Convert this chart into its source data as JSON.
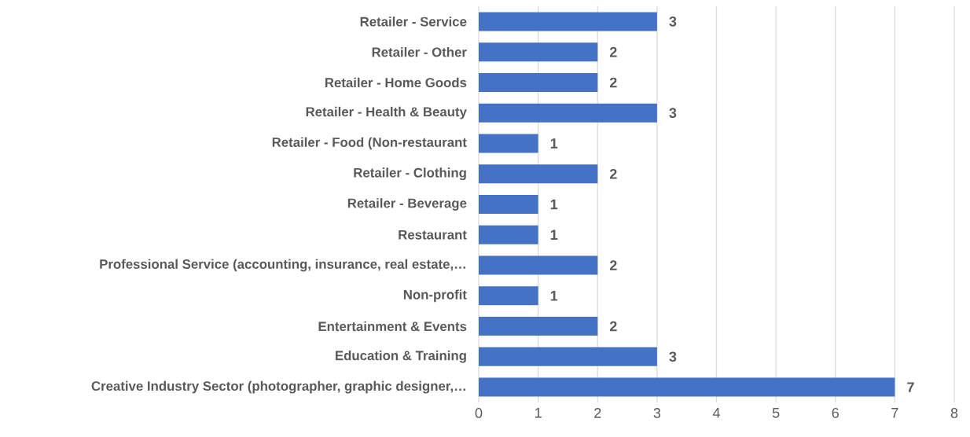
{
  "chart_data": {
    "type": "bar",
    "orientation": "horizontal",
    "categories": [
      "Retailer - Service",
      "Retailer - Other",
      "Retailer - Home Goods",
      "Retailer - Health & Beauty",
      "Retailer - Food (Non-restaurant",
      "Retailer - Clothing",
      "Retailer - Beverage",
      "Restaurant",
      "Professional Service (accounting, insurance, real estate,…",
      "Non-profit",
      "Entertainment & Events",
      "Education & Training",
      "Creative Industry Sector (photographer, graphic designer,…"
    ],
    "values": [
      3,
      2,
      2,
      3,
      1,
      2,
      1,
      1,
      2,
      1,
      2,
      3,
      7
    ],
    "color": "#4472c4",
    "xlim": [
      0,
      8
    ],
    "xticks": [
      0,
      1,
      2,
      3,
      4,
      5,
      6,
      7,
      8
    ],
    "grid": "x",
    "data_labels": true
  }
}
